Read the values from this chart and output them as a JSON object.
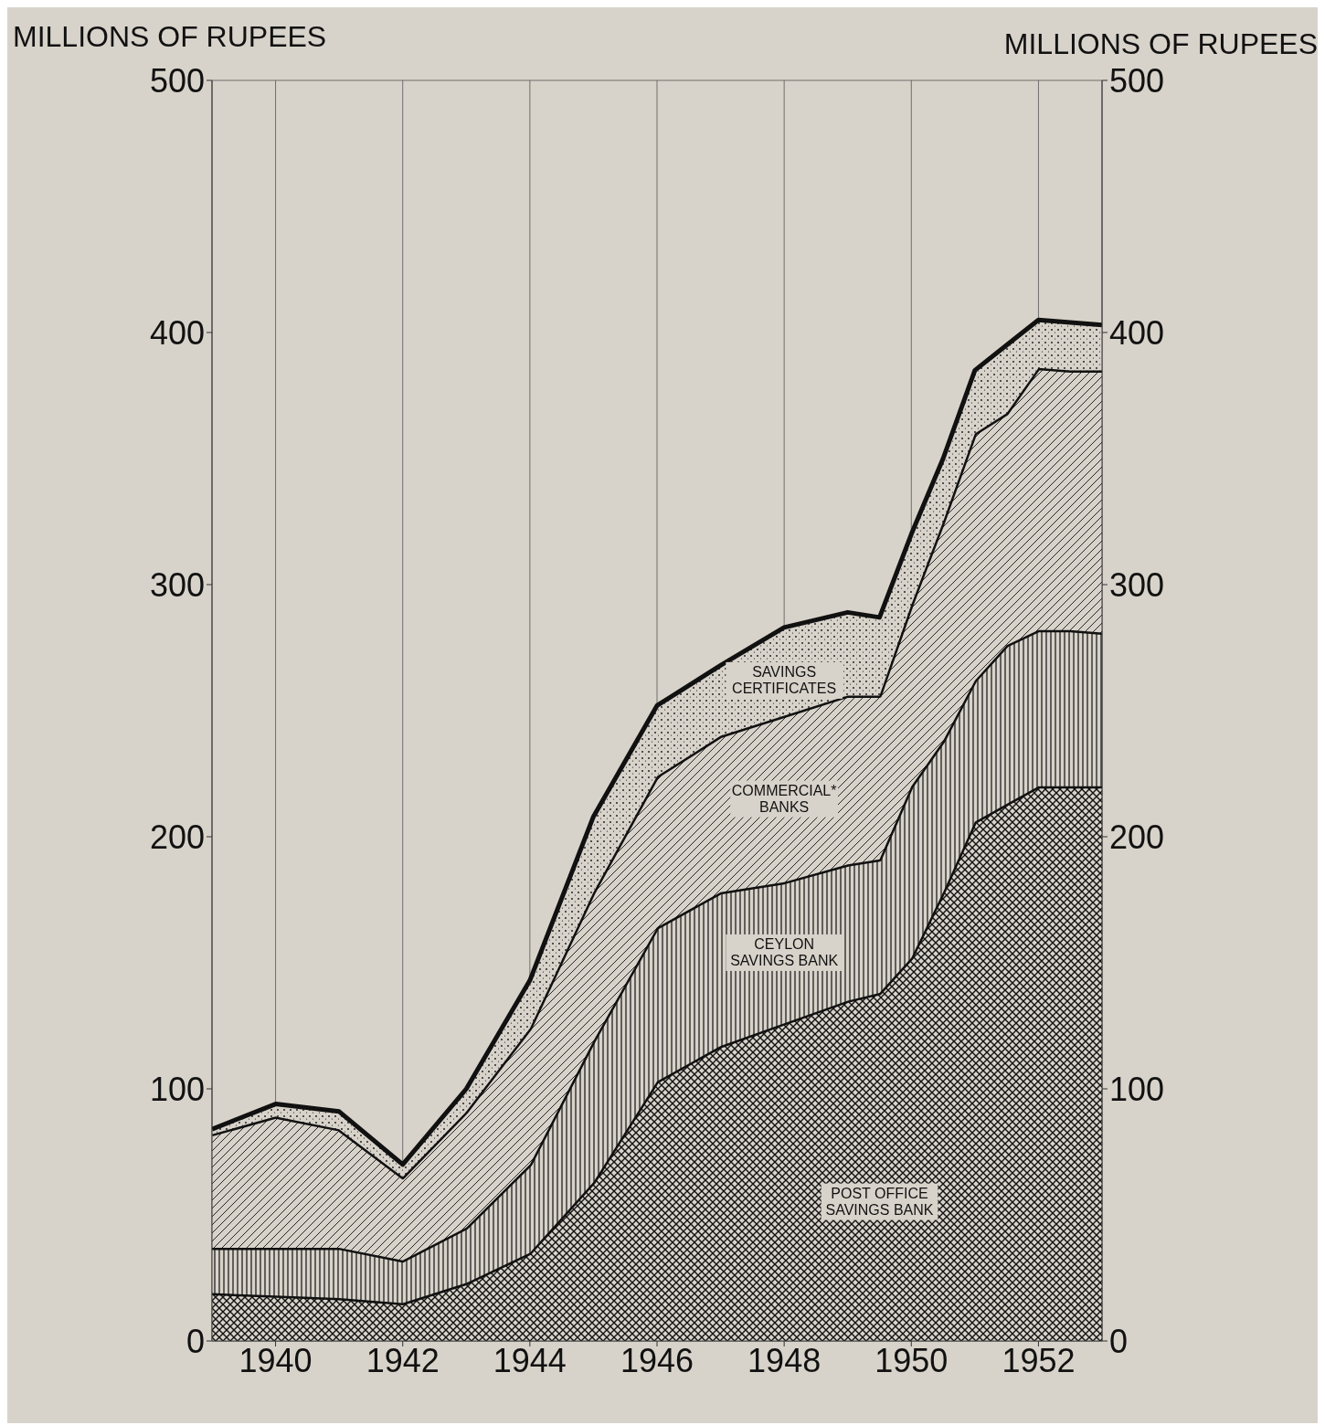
{
  "chart_data": {
    "type": "area",
    "stacked": true,
    "ylabel": "MILLIONS OF RUPEES",
    "y2label": "MILLIONS OF RUPEES",
    "x": [
      1939,
      1940,
      1941,
      1942,
      1943,
      1944,
      1945,
      1946,
      1947,
      1948,
      1949,
      1949.5,
      1950,
      1950.5,
      1951,
      1951.5,
      1952,
      1952.5,
      1953
    ],
    "series": [
      {
        "name": "POST OFFICE SAVINGS BANK",
        "color": "#111111",
        "values": [
          19,
          18,
          17,
          15,
          23,
          35,
          63,
          103,
          117,
          126,
          135,
          138,
          152,
          178,
          206,
          213,
          220,
          220,
          220
        ]
      },
      {
        "name": "CEYLON SAVINGS BANK",
        "color": "#111111",
        "values": [
          18,
          19,
          20,
          17,
          22,
          35,
          56,
          61,
          61,
          56,
          54,
          53,
          68,
          60,
          56,
          63,
          62,
          62,
          61
        ]
      },
      {
        "name": "COMMERCIAL* BANKS",
        "color": "#111111",
        "values": [
          45,
          52,
          47,
          33,
          46,
          54,
          59,
          60,
          62,
          66,
          67,
          65,
          72,
          87,
          98,
          92,
          104,
          103,
          104
        ]
      },
      {
        "name": "SAVINGS CERTIFICATES",
        "color": "#111111",
        "values": [
          2,
          5,
          7,
          5,
          9,
          19,
          30,
          28,
          28,
          35,
          33,
          31,
          28,
          25,
          25,
          27,
          19,
          19,
          18
        ]
      }
    ],
    "xlim": [
      1939,
      1953
    ],
    "xticks": [
      1940,
      1942,
      1944,
      1946,
      1948,
      1950,
      1952
    ],
    "ylim": [
      0,
      500
    ],
    "yticks": [
      0,
      100,
      200,
      300,
      400,
      500
    ],
    "y2lim": [
      0,
      500
    ],
    "y2ticks": [
      0,
      100,
      200,
      300,
      400,
      500
    ],
    "grid": true
  }
}
